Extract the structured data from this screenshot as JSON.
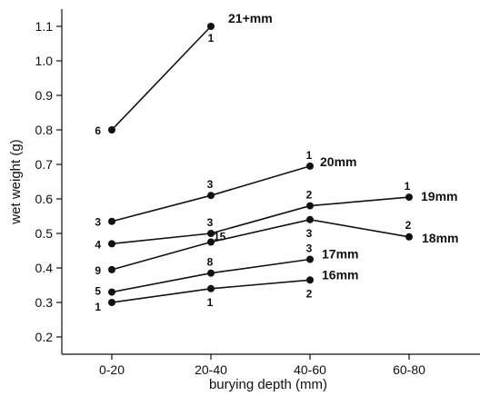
{
  "chart_data": {
    "type": "line",
    "title": "",
    "xlabel": "burying depth (mm)",
    "ylabel": "wet weight (g)",
    "categories": [
      "0-20",
      "20-40",
      "40-60",
      "60-80"
    ],
    "ylim": [
      0.15,
      1.15
    ],
    "yticks": [
      "0.2",
      "0.3",
      "0.4",
      "0.5",
      "0.6",
      "0.7",
      "0.8",
      "0.9",
      "1.0",
      "1.1"
    ],
    "grid": false,
    "series": [
      {
        "name": "21+mm",
        "values": [
          0.8,
          1.1,
          null,
          null
        ],
        "n": [
          "6",
          "1",
          "",
          ""
        ]
      },
      {
        "name": "20mm",
        "values": [
          0.535,
          0.61,
          0.695,
          null
        ],
        "n": [
          "3",
          "3",
          "1",
          ""
        ]
      },
      {
        "name": "19mm",
        "values": [
          0.47,
          0.5,
          0.58,
          0.605
        ],
        "n": [
          "4",
          "3",
          "2",
          "1"
        ]
      },
      {
        "name": "18mm",
        "values": [
          0.395,
          0.475,
          0.54,
          0.49
        ],
        "n": [
          "9",
          "15",
          "3",
          "2"
        ]
      },
      {
        "name": "17mm",
        "values": [
          0.33,
          0.385,
          0.425,
          null
        ],
        "n": [
          "5",
          "8",
          "3",
          ""
        ]
      },
      {
        "name": "16mm",
        "values": [
          0.3,
          0.34,
          0.365,
          null
        ],
        "n": [
          "1",
          "1",
          "2",
          ""
        ]
      }
    ],
    "colors": {
      "ink": "#111111",
      "background": "#ffffff"
    }
  }
}
